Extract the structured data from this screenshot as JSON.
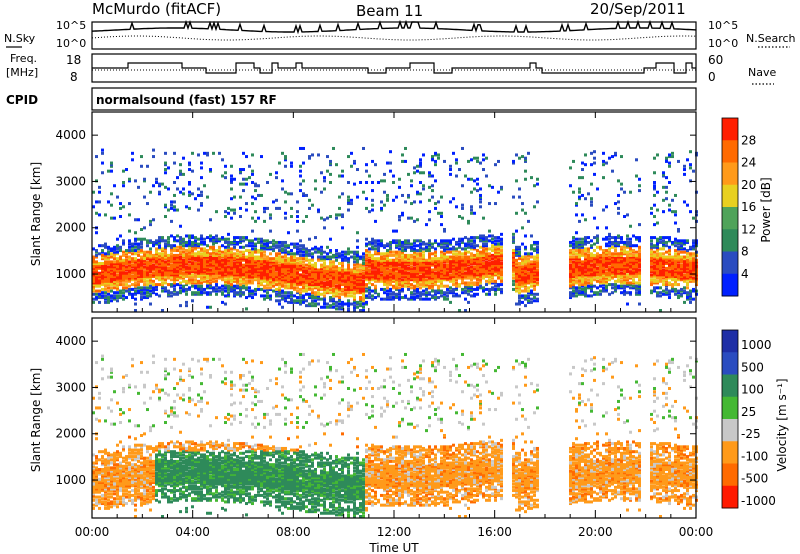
{
  "header": {
    "station": "McMurdo (fitACF)",
    "beam": "Beam 11",
    "date": "20/Sep/2011"
  },
  "noise_panel": {
    "left_label": "N.Sky",
    "right_label": "N.Search",
    "left_ticks": [
      "10^5",
      "10^0"
    ],
    "right_ticks": [
      "10^5",
      "10^0"
    ]
  },
  "freq_panel": {
    "left_label_line1": "Freq.",
    "left_label_line2": "[MHz]",
    "left_ticks": [
      "18",
      "8"
    ],
    "right_label": "Nave",
    "right_ticks": [
      "60",
      "0"
    ]
  },
  "cpid": {
    "label": "CPID",
    "value": "normalsound (fast) 157 RF"
  },
  "x_axis": {
    "label": "Time UT",
    "ticks": [
      "00:00",
      "04:00",
      "08:00",
      "12:00",
      "16:00",
      "20:00",
      "00:00"
    ]
  },
  "colors": {
    "power": [
      "#0020ff",
      "#2a4cc0",
      "#2e8a5a",
      "#4fa35a",
      "#e8d020",
      "#ff9a1a",
      "#ff6a00",
      "#ff1e00"
    ],
    "velocity": [
      "#ff1a00",
      "#ff6a00",
      "#ff9a1a",
      "#c8c8c8",
      "#44b833",
      "#2e8a5a",
      "#2a4cc0",
      "#1e2ea6"
    ]
  },
  "chart_data": [
    {
      "type": "heatmap",
      "title": "",
      "xlabel": "Time UT",
      "ylabel": "Slant Range [km]",
      "ylim": [
        180,
        4500
      ],
      "yticks": [
        "4000",
        "3000",
        "2000",
        "1000"
      ],
      "colorbar": {
        "label": "Power [dB]",
        "ticks": [
          "28",
          "24",
          "20",
          "16",
          "12",
          "8",
          "4"
        ],
        "range": [
          0,
          32
        ]
      }
    },
    {
      "type": "heatmap",
      "title": "",
      "xlabel": "Time UT",
      "ylabel": "Slant Range [km]",
      "ylim": [
        180,
        4500
      ],
      "yticks": [
        "4000",
        "3000",
        "2000",
        "1000"
      ],
      "colorbar": {
        "label": "Velocity [m s⁻¹]",
        "ticks": [
          "1000",
          "500",
          "100",
          "25",
          "-25",
          "-100",
          "-500",
          "-1000"
        ]
      }
    }
  ]
}
